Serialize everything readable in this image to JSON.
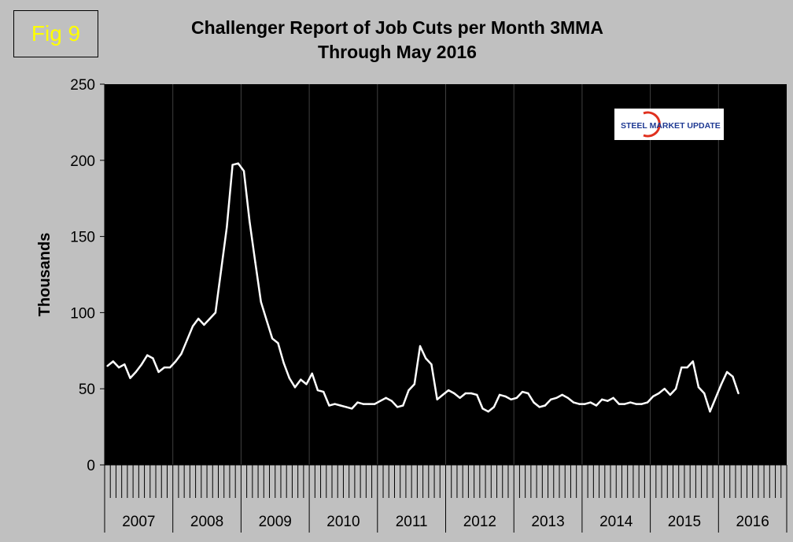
{
  "fig_label": "Fig 9",
  "chart_data": {
    "type": "line",
    "title": "Challenger Report of Job Cuts per Month 3MMA",
    "subtitle": "Through May 2016",
    "ylabel": "Thousands",
    "xlabel": "",
    "ylim": [
      0,
      250
    ],
    "yticks": [
      0,
      50,
      100,
      150,
      200,
      250
    ],
    "grid": "vertical year lines",
    "year_labels": [
      "2007",
      "2008",
      "2009",
      "2010",
      "2011",
      "2012",
      "2013",
      "2014",
      "2015",
      "2016"
    ],
    "logo_text": "STEEL MARKET UPDATE",
    "colors": {
      "background": "#000000",
      "line": "#ffffff",
      "page": "#c0c0c0",
      "fig_label": "#ffff00"
    },
    "series": [
      {
        "values": [
          65,
          68,
          64,
          66,
          57,
          61,
          66,
          72,
          70,
          61,
          64,
          64,
          68,
          73,
          82,
          91,
          96,
          92,
          96,
          100,
          128,
          156,
          197,
          198,
          193,
          160,
          133,
          107,
          95,
          83,
          80,
          67,
          57,
          51,
          56,
          53,
          60,
          49,
          48,
          39,
          40,
          39,
          38,
          37,
          41,
          40,
          40,
          40,
          42,
          44,
          42,
          38,
          39,
          49,
          53,
          78,
          70,
          66,
          43,
          46,
          49,
          47,
          44,
          47,
          47,
          46,
          37,
          35,
          38,
          46,
          45,
          43,
          44,
          48,
          47,
          41,
          38,
          39,
          43,
          44,
          46,
          44,
          41,
          40,
          40,
          41,
          39,
          43,
          42,
          44,
          40,
          40,
          41,
          40,
          40,
          41,
          45,
          47,
          50,
          46,
          50,
          64,
          64,
          68,
          51,
          47,
          35,
          44,
          53,
          61,
          58,
          47
        ]
      }
    ]
  }
}
